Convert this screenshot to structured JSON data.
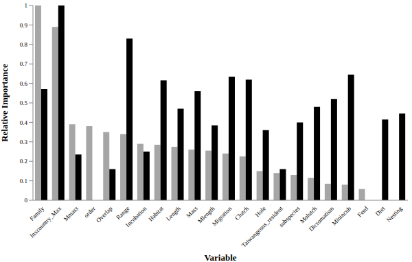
{
  "chart_data": {
    "type": "bar",
    "x_label": "Variable",
    "y_label": "Relative Importance",
    "categories": [
      "Family",
      "Inxcountry_Max",
      "Mmass",
      "order",
      "Overlap",
      "Range",
      "Incubation",
      "Habitat",
      "Length",
      "Mass",
      "Mlength",
      "Migration",
      "Clutch",
      "Hole",
      "Taiwangenus_resident",
      "subspecies",
      "Molutch",
      "Dicromatism",
      "Minincub",
      "Feed",
      "Diet",
      "Nesting"
    ],
    "series": [
      {
        "color": "#a6a6a6",
        "values": [
          1,
          0.89,
          0.39,
          0.38,
          0.35,
          0.34,
          0.29,
          0.285,
          0.275,
          0.26,
          0.255,
          0.24,
          0.225,
          0.15,
          0.14,
          0.13,
          0.115,
          0.085,
          0.08,
          0.058,
          null,
          null
        ]
      },
      {
        "color": "#000000",
        "values": [
          0.57,
          1.0,
          0.235,
          null,
          0.16,
          0.83,
          0.25,
          0.615,
          0.47,
          0.56,
          0.385,
          0.635,
          0.62,
          0.36,
          0.16,
          0.4,
          0.48,
          0.52,
          0.645,
          null,
          0.415,
          0.445
        ]
      }
    ],
    "ylim": [
      0,
      1
    ],
    "yticks": [
      0,
      0.1,
      0.2,
      0.3,
      0.4,
      0.5,
      0.6,
      0.7,
      0.8,
      0.9,
      1
    ],
    "grid": false
  }
}
